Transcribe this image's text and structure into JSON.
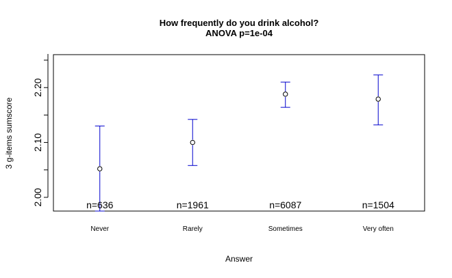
{
  "chart_data": {
    "type": "errorbar",
    "title": "How frequently do you drink alcohol?",
    "subtitle": "ANOVA p=1e-04",
    "xlabel": "Answer",
    "ylabel": "3 g-items sumscore",
    "categories": [
      "Never",
      "Rarely",
      "Sometimes",
      "Very often"
    ],
    "means": [
      2.052,
      2.1,
      2.188,
      2.179
    ],
    "lower": [
      1.975,
      2.058,
      2.164,
      2.132
    ],
    "upper": [
      2.13,
      2.142,
      2.21,
      2.223
    ],
    "n_labels": [
      "n=636",
      "n=1961",
      "n=6087",
      "n=1504"
    ],
    "yticks": [
      2.0,
      2.1,
      2.2
    ],
    "ytick_labels": [
      "2.00",
      "2.10",
      "2.20"
    ],
    "ylim": [
      1.975,
      2.26
    ],
    "grid": false,
    "colors": {
      "errorbar": "#0000CD",
      "point": "#000000"
    }
  }
}
